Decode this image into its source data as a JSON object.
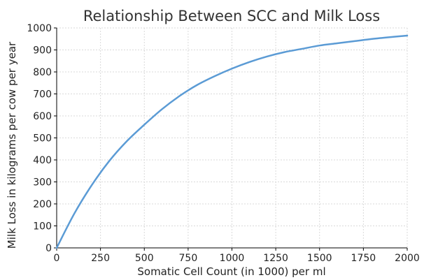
{
  "chart_data": {
    "type": "line",
    "title": "Relationship Between SCC and Milk Loss",
    "xlabel": "Somatic Cell Count (in 1000) per ml",
    "ylabel": "Milk Loss in kilograms per cow per year",
    "xlim": [
      0,
      2000
    ],
    "ylim": [
      0,
      1000
    ],
    "xticks": [
      0,
      250,
      500,
      750,
      1000,
      1250,
      1500,
      1750,
      2000
    ],
    "yticks": [
      0,
      100,
      200,
      300,
      400,
      500,
      600,
      700,
      800,
      900,
      1000
    ],
    "grid": true,
    "legend": "none",
    "line_color": "#5b9bd5",
    "series": [
      {
        "x": [
          0,
          100,
          200,
          300,
          400,
          500,
          600,
          700,
          800,
          900,
          1000,
          1100,
          1200,
          1300,
          1400,
          1500,
          1600,
          1700,
          1800,
          1900,
          2000
        ],
        "values": [
          0,
          155,
          285,
          395,
          485,
          560,
          630,
          690,
          740,
          780,
          815,
          845,
          870,
          890,
          905,
          920,
          930,
          940,
          950,
          958,
          965
        ]
      }
    ]
  }
}
